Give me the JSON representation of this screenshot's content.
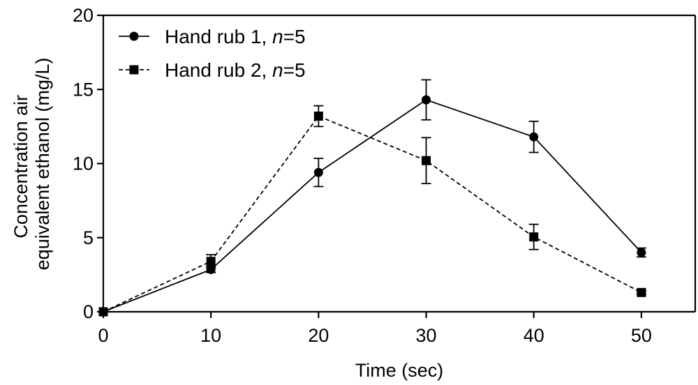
{
  "chart_data": {
    "type": "line",
    "xlabel": "Time (sec)",
    "ylabel_lines": [
      "Concentration air",
      "equivalent ethanol (mg/L)"
    ],
    "xlim": [
      0,
      55
    ],
    "ylim": [
      0,
      20
    ],
    "x_ticks": [
      0,
      10,
      20,
      30,
      40,
      50
    ],
    "y_ticks": [
      0,
      5,
      10,
      15,
      20
    ],
    "legend_position": "top-left",
    "series": [
      {
        "name": "Hand rub 1, ",
        "name_italic": "n",
        "name_suffix": "=5",
        "marker": "circle",
        "line_style": "solid",
        "x": [
          0,
          10,
          20,
          30,
          40,
          50
        ],
        "y": [
          0,
          2.85,
          9.4,
          14.3,
          11.8,
          4.0
        ],
        "error": [
          0,
          0.2,
          0.95,
          1.35,
          1.05,
          0.3
        ]
      },
      {
        "name": "Hand rub 2, ",
        "name_italic": "n",
        "name_suffix": "=5",
        "marker": "square",
        "line_style": "dashed",
        "x": [
          0,
          10,
          20,
          30,
          40,
          50
        ],
        "y": [
          0,
          3.4,
          13.2,
          10.2,
          5.05,
          1.3
        ],
        "error": [
          0,
          0.45,
          0.7,
          1.55,
          0.85,
          0.1
        ]
      }
    ]
  }
}
